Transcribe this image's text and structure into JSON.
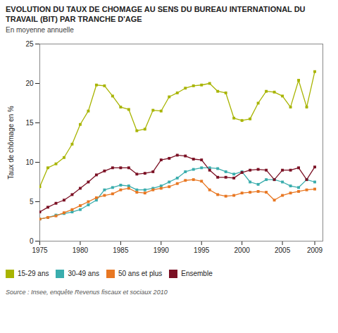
{
  "chart_data": {
    "type": "line",
    "title": "EVOLUTION DU TAUX DE CHOMAGE AU SENS DU BUREAU INTERNATIONAL DU TRAVAIL (BIT) PAR TRANCHE D'AGE",
    "subtitle": "En moyenne annuelle",
    "ylabel": "Taux de chômage en %",
    "source": "Source : Insee, enquête Revenus fiscaux et sociaux 2010",
    "x": [
      1975,
      1976,
      1977,
      1978,
      1979,
      1980,
      1981,
      1982,
      1983,
      1984,
      1985,
      1986,
      1987,
      1988,
      1989,
      1990,
      1991,
      1992,
      1993,
      1994,
      1995,
      1996,
      1997,
      1998,
      1999,
      2000,
      2001,
      2002,
      2003,
      2004,
      2005,
      2006,
      2007,
      2008,
      2009
    ],
    "series": [
      {
        "name": "15-29 ans",
        "color": "#a8b400",
        "values": [
          6.9,
          9.3,
          9.8,
          10.6,
          12.3,
          14.8,
          16.5,
          19.8,
          19.7,
          18.4,
          17.0,
          16.7,
          14.0,
          14.2,
          16.6,
          16.5,
          18.3,
          18.8,
          19.4,
          19.7,
          19.8,
          20.0,
          19.0,
          18.8,
          15.6,
          15.3,
          15.5,
          17.5,
          19.0,
          18.9,
          18.4,
          17.0,
          20.4,
          17.0,
          21.5
        ]
      },
      {
        "name": "30-49 ans",
        "color": "#3aadad",
        "values": [
          2.8,
          3.0,
          3.3,
          3.5,
          3.7,
          4.0,
          4.6,
          5.2,
          6.5,
          6.8,
          7.1,
          7.0,
          6.5,
          6.5,
          6.7,
          7.0,
          7.5,
          8.0,
          8.8,
          9.1,
          9.3,
          9.3,
          9.2,
          8.8,
          8.5,
          8.8,
          7.5,
          7.2,
          7.8,
          7.8,
          7.5,
          7.0,
          6.8,
          7.8,
          7.5
        ]
      },
      {
        "name": "50 ans et plus",
        "color": "#e87722",
        "values": [
          2.8,
          3.0,
          3.2,
          3.6,
          4.0,
          4.5,
          5.0,
          5.5,
          5.8,
          6.0,
          6.5,
          6.7,
          6.2,
          6.1,
          6.5,
          6.7,
          6.9,
          7.3,
          7.7,
          7.8,
          7.6,
          6.5,
          5.9,
          5.7,
          5.8,
          6.1,
          6.2,
          6.3,
          6.2,
          5.2,
          5.8,
          6.1,
          6.3,
          6.5,
          6.6
        ]
      },
      {
        "name": "Ensemble",
        "color": "#7b1024",
        "values": [
          3.7,
          4.3,
          4.8,
          5.2,
          5.9,
          6.7,
          7.5,
          8.4,
          8.9,
          9.3,
          9.3,
          9.3,
          8.5,
          8.6,
          8.8,
          10.3,
          10.5,
          10.9,
          10.8,
          10.4,
          10.3,
          9.0,
          8.1,
          8.1,
          8.0,
          8.7,
          9.0,
          9.1,
          9.0,
          7.8,
          9.0,
          9.0,
          9.3,
          7.8,
          9.4
        ]
      }
    ],
    "xlim": [
      1975,
      2010
    ],
    "xticks": [
      1975,
      1980,
      1985,
      1990,
      1995,
      2000,
      2005,
      2009
    ],
    "ylim": [
      0,
      25
    ],
    "yticks": [
      0,
      5,
      10,
      15,
      20,
      25
    ],
    "marker": "square",
    "grid": false,
    "legend": "bottom"
  }
}
